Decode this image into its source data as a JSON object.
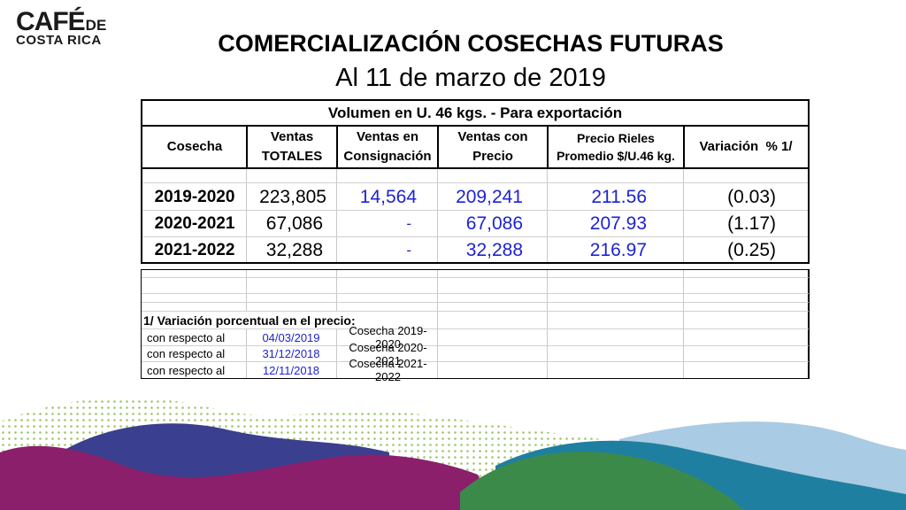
{
  "logo": {
    "main": "CAFÉ",
    "de": "DE",
    "sub": "COSTA RICA"
  },
  "title": "COMERCIALIZACIÓN COSECHAS FUTURAS",
  "subtitle": "Al 11 de marzo de 2019",
  "table": {
    "banner": "Volumen en U. 46 kgs. - Para exportación",
    "headers": {
      "cosecha": "Cosecha",
      "ventas_totales_1": "Ventas",
      "ventas_totales_2": "TOTALES",
      "consignacion_1": "Ventas en",
      "consignacion_2": "Consignación",
      "ventas_con_1": "Ventas con",
      "ventas_con_2": "Precio",
      "precio_1": "Precio Rieles",
      "precio_2": "Promedio $/U.46 kg.",
      "variacion": "Variación  % 1/"
    },
    "rows": [
      {
        "cosecha": "2019-2020",
        "totales": "223,805",
        "consignacion": "14,564",
        "con_precio": "209,241",
        "precio": "211.56",
        "variacion": "(0.03)"
      },
      {
        "cosecha": "2020-2021",
        "totales": "67,086",
        "consignacion": "-",
        "con_precio": "67,086",
        "precio": "207.93",
        "variacion": "(1.17)"
      },
      {
        "cosecha": "2021-2022",
        "totales": "32,288",
        "consignacion": "-",
        "con_precio": "32,288",
        "precio": "216.97",
        "variacion": "(0.25)"
      }
    ]
  },
  "notes": {
    "heading": "1/ Variación porcentual en el precio:",
    "rows": [
      {
        "label": "con respecto al",
        "date": "04/03/2019",
        "cosecha": "Cosecha 2019-2020"
      },
      {
        "label": "con respecto al",
        "date": "31/12/2018",
        "cosecha": "Cosecha 2020-2021"
      },
      {
        "label": "con respecto al",
        "date": "12/11/2018",
        "cosecha": "Cosecha 2021-2022"
      }
    ]
  },
  "colors": {
    "blue_values": "#1f23d0",
    "wave_purple": "#8b1f6b",
    "wave_navy": "#3b3f8f",
    "wave_green": "#3c8a4a",
    "wave_teal": "#1f7fa0",
    "wave_light": "#9ec4df"
  }
}
